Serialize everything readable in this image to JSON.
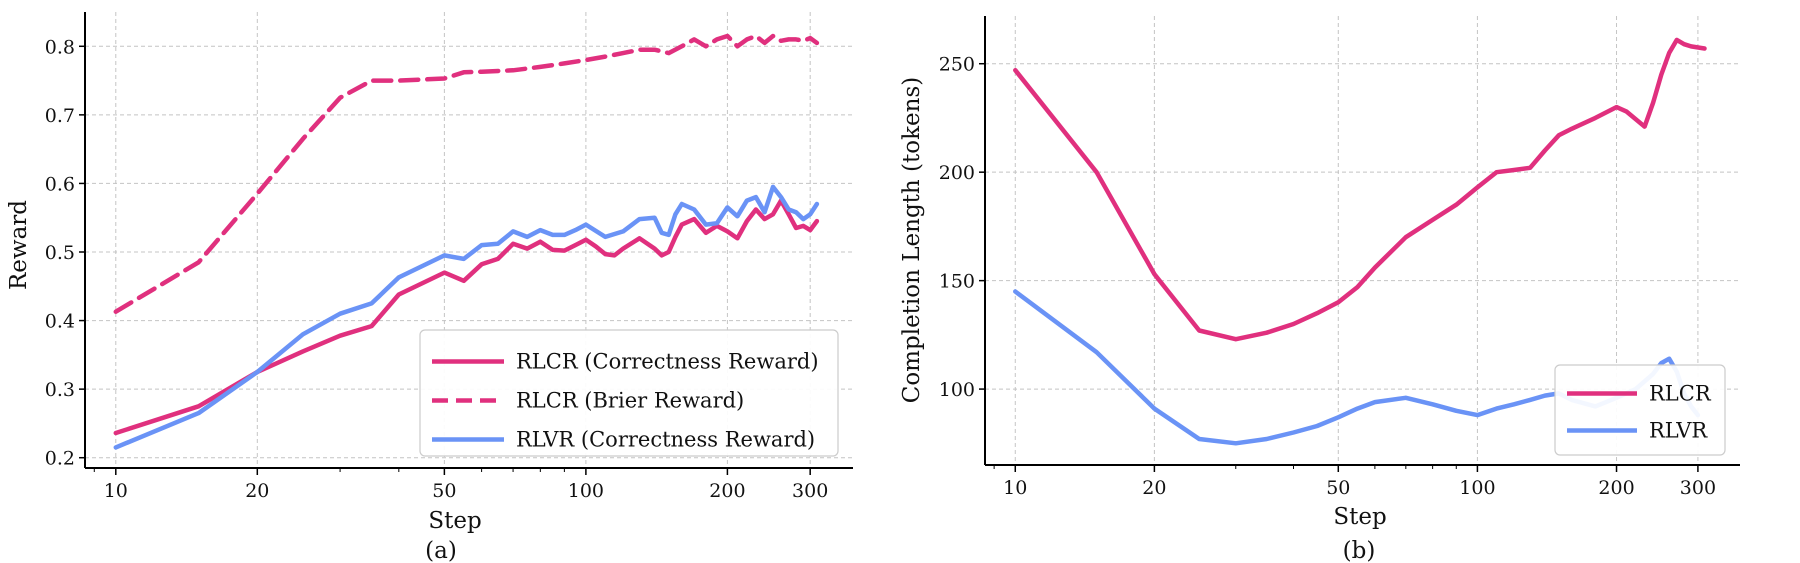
{
  "colors": {
    "rlcr": "#e0307e",
    "rlvr": "#6a93f6"
  },
  "chart_data": [
    {
      "type": "line",
      "panel_label": "(a)",
      "xlabel": "Step",
      "ylabel": "Reward",
      "xscale": "log",
      "xlim": [
        8.6,
        370
      ],
      "ylim": [
        0.185,
        0.85
      ],
      "xticks": [
        10,
        20,
        50,
        100,
        200,
        300
      ],
      "xtick_labels": [
        "10",
        "20",
        "50",
        "100",
        "200",
        "300"
      ],
      "yticks": [
        0.2,
        0.3,
        0.4,
        0.5,
        0.6,
        0.7,
        0.8
      ],
      "ytick_labels": [
        "0.2",
        "0.3",
        "0.4",
        "0.5",
        "0.6",
        "0.7",
        "0.8"
      ],
      "grid": true,
      "legend_position": "lower-right",
      "series": [
        {
          "name": "RLCR (Correctness Reward)",
          "color": "#e0307e",
          "dash": "solid",
          "x": [
            10,
            15,
            20,
            25,
            30,
            35,
            40,
            50,
            55,
            60,
            65,
            70,
            75,
            80,
            85,
            90,
            95,
            100,
            105,
            110,
            115,
            120,
            130,
            140,
            145,
            150,
            155,
            160,
            170,
            180,
            190,
            200,
            210,
            220,
            230,
            240,
            250,
            260,
            270,
            280,
            290,
            300,
            310
          ],
          "values": [
            0.236,
            0.275,
            0.325,
            0.355,
            0.378,
            0.392,
            0.438,
            0.47,
            0.458,
            0.482,
            0.49,
            0.512,
            0.505,
            0.515,
            0.503,
            0.502,
            0.51,
            0.518,
            0.508,
            0.497,
            0.495,
            0.505,
            0.52,
            0.505,
            0.495,
            0.5,
            0.522,
            0.54,
            0.548,
            0.528,
            0.538,
            0.53,
            0.52,
            0.545,
            0.562,
            0.548,
            0.555,
            0.575,
            0.555,
            0.535,
            0.538,
            0.532,
            0.545
          ]
        },
        {
          "name": "RLCR (Brier Reward)",
          "color": "#e0307e",
          "dash": "dashed",
          "x": [
            10,
            15,
            20,
            25,
            30,
            35,
            40,
            50,
            55,
            60,
            70,
            80,
            90,
            100,
            110,
            120,
            130,
            140,
            150,
            160,
            170,
            180,
            190,
            200,
            210,
            220,
            230,
            240,
            250,
            260,
            270,
            280,
            290,
            300,
            310
          ],
          "values": [
            0.413,
            0.485,
            0.585,
            0.665,
            0.725,
            0.75,
            0.75,
            0.753,
            0.762,
            0.763,
            0.765,
            0.77,
            0.775,
            0.78,
            0.785,
            0.79,
            0.795,
            0.795,
            0.79,
            0.8,
            0.81,
            0.8,
            0.81,
            0.815,
            0.8,
            0.81,
            0.815,
            0.805,
            0.815,
            0.808,
            0.81,
            0.81,
            0.808,
            0.812,
            0.805
          ]
        },
        {
          "name": "RLVR (Correctness Reward)",
          "color": "#6a93f6",
          "dash": "solid",
          "x": [
            10,
            15,
            20,
            25,
            30,
            35,
            40,
            50,
            55,
            60,
            65,
            70,
            75,
            80,
            85,
            90,
            95,
            100,
            110,
            120,
            130,
            140,
            145,
            150,
            155,
            160,
            170,
            180,
            190,
            200,
            210,
            220,
            230,
            240,
            250,
            260,
            270,
            280,
            290,
            300,
            310
          ],
          "values": [
            0.215,
            0.265,
            0.325,
            0.38,
            0.41,
            0.425,
            0.463,
            0.495,
            0.49,
            0.51,
            0.512,
            0.53,
            0.522,
            0.532,
            0.525,
            0.525,
            0.532,
            0.54,
            0.522,
            0.53,
            0.548,
            0.55,
            0.528,
            0.525,
            0.555,
            0.57,
            0.562,
            0.54,
            0.542,
            0.565,
            0.552,
            0.575,
            0.58,
            0.558,
            0.595,
            0.58,
            0.562,
            0.558,
            0.548,
            0.555,
            0.57
          ]
        }
      ]
    },
    {
      "type": "line",
      "panel_label": "(b)",
      "xlabel": "Step",
      "ylabel": "Completion Length (tokens)",
      "xscale": "log",
      "xlim": [
        8.6,
        370
      ],
      "ylim": [
        65,
        272
      ],
      "xticks": [
        10,
        20,
        50,
        100,
        200,
        300
      ],
      "xtick_labels": [
        "10",
        "20",
        "50",
        "100",
        "200",
        "300"
      ],
      "yticks": [
        100,
        150,
        200,
        250
      ],
      "ytick_labels": [
        "100",
        "150",
        "200",
        "250"
      ],
      "grid": true,
      "legend_position": "lower-right",
      "series": [
        {
          "name": "RLCR",
          "color": "#e0307e",
          "dash": "solid",
          "x": [
            10,
            15,
            20,
            25,
            30,
            35,
            40,
            45,
            50,
            55,
            60,
            70,
            80,
            90,
            100,
            110,
            120,
            130,
            140,
            150,
            160,
            180,
            200,
            210,
            230,
            240,
            250,
            260,
            270,
            280,
            290,
            310
          ],
          "values": [
            247,
            200,
            153,
            127,
            123,
            126,
            130,
            135,
            140,
            147,
            156,
            170,
            178,
            185,
            193,
            200,
            201,
            202,
            210,
            217,
            220,
            225,
            230,
            228,
            221,
            232,
            245,
            255,
            261,
            259,
            258,
            257
          ]
        },
        {
          "name": "RLVR",
          "color": "#6a93f6",
          "dash": "solid",
          "x": [
            10,
            15,
            20,
            25,
            30,
            35,
            40,
            45,
            50,
            55,
            60,
            70,
            80,
            90,
            100,
            110,
            120,
            130,
            140,
            150,
            160,
            180,
            200,
            220,
            240,
            250,
            260,
            270,
            280,
            290,
            300
          ],
          "values": [
            145,
            117,
            91,
            77,
            75,
            77,
            80,
            83,
            87,
            91,
            94,
            96,
            93,
            90,
            88,
            91,
            93,
            95,
            97,
            98,
            95,
            92,
            96,
            100,
            107,
            112,
            114,
            108,
            98,
            92,
            88
          ]
        }
      ]
    }
  ]
}
